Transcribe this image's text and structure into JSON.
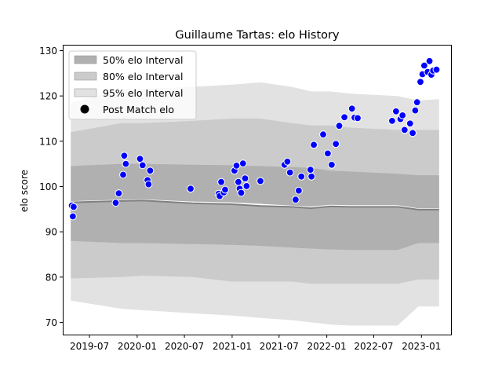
{
  "chart_data": {
    "type": "scatter",
    "title": "Guillaume Tartas: elo History",
    "xlabel": "",
    "ylabel": "elo score",
    "x_ticks": [
      "2019-07",
      "2020-01",
      "2020-07",
      "2021-01",
      "2021-07",
      "2022-01",
      "2022-07",
      "2023-01"
    ],
    "y_ticks": [
      70,
      80,
      90,
      100,
      110,
      120,
      130
    ],
    "xlim": [
      "2019-03-20",
      "2023-04-25"
    ],
    "ylim": [
      67.3,
      131.3
    ],
    "grid": false,
    "legend_position": "top-left",
    "legend": [
      {
        "label": "50% elo Interval",
        "kind": "band",
        "color": "#b0b0b0"
      },
      {
        "label": "80% elo Interval",
        "kind": "band",
        "color": "#cbcbcb"
      },
      {
        "label": "95% elo Interval",
        "kind": "band",
        "color": "#e2e2e2"
      },
      {
        "label": "Post Match elo",
        "kind": "marker",
        "color": "#000000"
      }
    ],
    "colors": {
      "band50": "#b0b0b0",
      "band80": "#cbcbcb",
      "band95": "#e2e2e2",
      "points": "#0000ff",
      "point_edge": "#ffffff",
      "mean_line": "#ffffff",
      "median_line": "#808080"
    },
    "bands": {
      "x": [
        "2019-04-20",
        "2019-11-01",
        "2020-01-20",
        "2020-08-01",
        "2021-01-01",
        "2021-04-20",
        "2021-08-20",
        "2021-11-01",
        "2022-01-15",
        "2022-04-01",
        "2022-10-01",
        "2022-12-20",
        "2023-03-10"
      ],
      "p95_upper": [
        118.5,
        121.5,
        121.5,
        122.0,
        122.5,
        123.0,
        122.0,
        121.0,
        121.0,
        120.5,
        120.0,
        119.0,
        119.3
      ],
      "p95_lower": [
        74.8,
        73.0,
        72.7,
        72.0,
        71.5,
        71.0,
        70.5,
        70.0,
        69.5,
        69.3,
        69.3,
        73.5,
        73.5
      ],
      "p80_upper": [
        112.0,
        114.0,
        114.0,
        114.5,
        115.0,
        115.0,
        114.0,
        113.5,
        113.5,
        113.0,
        112.5,
        112.5,
        112.5
      ],
      "p80_lower": [
        79.7,
        80.0,
        80.3,
        80.0,
        79.0,
        79.0,
        79.0,
        78.5,
        78.5,
        78.5,
        78.5,
        79.5,
        79.5
      ],
      "p50_upper": [
        104.5,
        105.0,
        105.0,
        104.8,
        104.7,
        104.5,
        104.3,
        104.1,
        103.5,
        103.3,
        102.8,
        102.5,
        102.5
      ],
      "p50_lower": [
        88.0,
        87.5,
        87.5,
        87.3,
        87.1,
        86.9,
        86.5,
        86.3,
        86.1,
        86.0,
        86.0,
        87.5,
        87.5
      ],
      "mean": [
        96.6,
        96.9,
        97.0,
        96.5,
        96.3,
        96.0,
        95.6,
        95.4,
        95.8,
        95.7,
        95.7,
        95.0,
        95.0
      ],
      "median": [
        96.5,
        96.8,
        96.9,
        96.3,
        96.1,
        95.7,
        95.5,
        95.2,
        95.6,
        95.5,
        95.5,
        94.9,
        94.9
      ]
    },
    "series": [
      {
        "name": "Post Match elo",
        "x": [
          "2019-04-24",
          "2019-04-28",
          "2019-05-01",
          "2019-10-10",
          "2019-10-22",
          "2019-11-08",
          "2019-11-12",
          "2019-11-18",
          "2020-01-12",
          "2020-01-22",
          "2020-02-10",
          "2020-02-14",
          "2020-02-20",
          "2020-07-25",
          "2020-11-10",
          "2020-11-14",
          "2020-11-20",
          "2020-11-30",
          "2020-12-05",
          "2021-01-10",
          "2021-01-18",
          "2021-01-25",
          "2021-01-30",
          "2021-02-05",
          "2021-02-12",
          "2021-02-20",
          "2021-02-26",
          "2021-04-20",
          "2021-07-22",
          "2021-08-02",
          "2021-08-12",
          "2021-09-03",
          "2021-09-15",
          "2021-09-25",
          "2021-10-30",
          "2021-11-03",
          "2021-11-12",
          "2021-12-18",
          "2022-01-05",
          "2022-01-20",
          "2022-02-05",
          "2022-02-18",
          "2022-03-10",
          "2022-04-08",
          "2022-04-18",
          "2022-04-30",
          "2022-09-10",
          "2022-09-25",
          "2022-10-12",
          "2022-10-20",
          "2022-10-28",
          "2022-11-18",
          "2022-11-28",
          "2022-12-08",
          "2022-12-15",
          "2022-12-28",
          "2023-01-05",
          "2023-01-12",
          "2023-01-25",
          "2023-02-01",
          "2023-02-08",
          "2023-02-15",
          "2023-02-28"
        ],
        "y": [
          95.8,
          93.4,
          95.5,
          96.4,
          98.5,
          102.6,
          106.8,
          105.0,
          106.1,
          104.7,
          101.4,
          100.5,
          103.5,
          99.5,
          98.4,
          97.9,
          101.0,
          98.7,
          99.3,
          103.5,
          104.6,
          101.0,
          99.5,
          98.6,
          105.1,
          101.8,
          100.1,
          101.2,
          104.8,
          105.5,
          103.1,
          97.1,
          99.1,
          102.2,
          103.7,
          102.2,
          109.2,
          111.5,
          107.3,
          104.8,
          109.4,
          113.4,
          115.3,
          117.2,
          115.2,
          115.1,
          114.5,
          116.6,
          114.9,
          115.7,
          112.5,
          113.9,
          111.8,
          116.8,
          118.6,
          123.1,
          124.8,
          126.7,
          125.3,
          127.7,
          124.7,
          125.6,
          125.8
        ]
      }
    ]
  }
}
